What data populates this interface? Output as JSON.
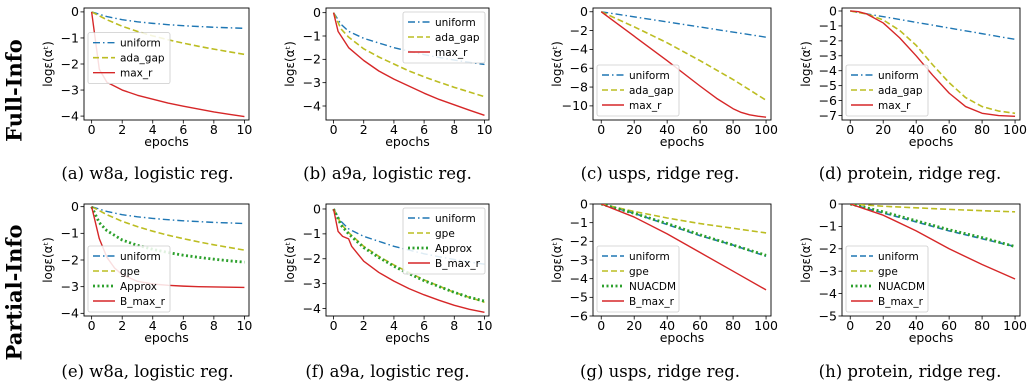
{
  "row_labels": [
    "Full-Info",
    "Partial-Info"
  ],
  "colors": {
    "uniform": "#1f77b4",
    "gap": "#bcbd22",
    "approx": "#2ca02c",
    "maxr": "#d62728"
  },
  "chart_data": [
    {
      "type": "line",
      "caption": "(a) w8a, logistic reg.",
      "xlabel": "epochs",
      "ylabel": "logε(αᵗ)",
      "xlim": [
        -0.5,
        10.3
      ],
      "ylim": [
        -4.15,
        0.15
      ],
      "xticks": [
        0,
        2,
        4,
        6,
        8,
        10
      ],
      "yticks": [
        0,
        -1,
        -2,
        -3,
        -4
      ],
      "legend_position": "center-left",
      "series": [
        {
          "name": "uniform",
          "style": "dashdot",
          "color_key": "uniform",
          "x": [
            0,
            1,
            2,
            3,
            4,
            5,
            6,
            7,
            8,
            9,
            10
          ],
          "y": [
            0,
            -0.18,
            -0.3,
            -0.38,
            -0.44,
            -0.49,
            -0.53,
            -0.56,
            -0.59,
            -0.61,
            -0.63
          ]
        },
        {
          "name": "ada_gap",
          "style": "dashed",
          "color_key": "gap",
          "x": [
            0,
            1,
            2,
            3,
            4,
            5,
            6,
            7,
            8,
            9,
            10
          ],
          "y": [
            0,
            -0.3,
            -0.55,
            -0.75,
            -0.92,
            -1.07,
            -1.2,
            -1.32,
            -1.43,
            -1.53,
            -1.63
          ]
        },
        {
          "name": "max_r",
          "style": "solid",
          "color_key": "maxr",
          "x": [
            0,
            0.5,
            1,
            2,
            3,
            4,
            5,
            6,
            7,
            8,
            9,
            10
          ],
          "y": [
            0,
            -2.2,
            -2.7,
            -3.0,
            -3.2,
            -3.35,
            -3.5,
            -3.62,
            -3.73,
            -3.84,
            -3.93,
            -4.02
          ]
        }
      ]
    },
    {
      "type": "line",
      "caption": "(b) a9a, logistic reg.",
      "xlabel": "epochs",
      "ylabel": "logε(αᵗ)",
      "xlim": [
        -0.5,
        10.3
      ],
      "ylim": [
        -4.6,
        0.2
      ],
      "xticks": [
        0,
        2,
        4,
        6,
        8,
        10
      ],
      "yticks": [
        0,
        -1,
        -2,
        -3,
        -4
      ],
      "legend_position": "top-right",
      "series": [
        {
          "name": "uniform",
          "style": "dashdot",
          "color_key": "uniform",
          "x": [
            0,
            0.5,
            1,
            2,
            3,
            4,
            5,
            6,
            7,
            8,
            9,
            10
          ],
          "y": [
            0,
            -0.5,
            -0.8,
            -1.1,
            -1.3,
            -1.5,
            -1.65,
            -1.8,
            -1.92,
            -2.03,
            -2.13,
            -2.22
          ]
        },
        {
          "name": "ada_gap",
          "style": "dashed",
          "color_key": "gap",
          "x": [
            0,
            0.5,
            1,
            2,
            3,
            4,
            5,
            6,
            7,
            8,
            9,
            10
          ],
          "y": [
            0,
            -0.7,
            -1.05,
            -1.55,
            -1.9,
            -2.2,
            -2.5,
            -2.75,
            -2.98,
            -3.2,
            -3.4,
            -3.6
          ]
        },
        {
          "name": "max_r",
          "style": "solid",
          "color_key": "maxr",
          "x": [
            0,
            0.3,
            0.7,
            1,
            2,
            3,
            4,
            5,
            6,
            7,
            8,
            9,
            10
          ],
          "y": [
            0,
            -0.8,
            -1.2,
            -1.5,
            -2.05,
            -2.5,
            -2.85,
            -3.15,
            -3.45,
            -3.72,
            -3.95,
            -4.18,
            -4.4
          ]
        }
      ]
    },
    {
      "type": "line",
      "caption": "(c) usps, ridge reg.",
      "xlabel": "epochs",
      "ylabel": "logε(αᵗ)",
      "xlim": [
        -5,
        103
      ],
      "ylim": [
        -11.5,
        0.4
      ],
      "xticks": [
        0,
        20,
        40,
        60,
        80,
        100
      ],
      "yticks": [
        0,
        -2,
        -4,
        -6,
        -8,
        -10
      ],
      "legend_position": "bottom-left",
      "series": [
        {
          "name": "uniform",
          "style": "dashdot",
          "color_key": "uniform",
          "x": [
            0,
            100
          ],
          "y": [
            0,
            -2.7
          ]
        },
        {
          "name": "ada_gap",
          "style": "dashed",
          "color_key": "gap",
          "x": [
            0,
            20,
            40,
            60,
            80,
            100
          ],
          "y": [
            0,
            -1.6,
            -3.3,
            -5.2,
            -7.2,
            -9.4
          ]
        },
        {
          "name": "max_r",
          "style": "solid",
          "color_key": "maxr",
          "x": [
            0,
            20,
            40,
            60,
            70,
            80,
            85,
            90,
            95,
            100
          ],
          "y": [
            0,
            -2.6,
            -5.2,
            -7.9,
            -9.2,
            -10.3,
            -10.7,
            -10.95,
            -11.1,
            -11.2
          ]
        }
      ]
    },
    {
      "type": "line",
      "caption": "(d) protein, ridge reg.",
      "xlabel": "epochs",
      "ylabel": "logε(αᵗ)",
      "xlim": [
        -5,
        103
      ],
      "ylim": [
        -7.3,
        0.2
      ],
      "xticks": [
        0,
        20,
        40,
        60,
        80,
        100
      ],
      "yticks": [
        0,
        -1,
        -2,
        -3,
        -4,
        -5,
        -6,
        -7
      ],
      "legend_position": "bottom-left",
      "series": [
        {
          "name": "uniform",
          "style": "dashdot",
          "color_key": "uniform",
          "x": [
            0,
            100
          ],
          "y": [
            0,
            -1.9
          ]
        },
        {
          "name": "ada_gap",
          "style": "dashed",
          "color_key": "gap",
          "x": [
            0,
            10,
            20,
            30,
            40,
            50,
            60,
            70,
            80,
            90,
            100
          ],
          "y": [
            0,
            -0.2,
            -0.6,
            -1.3,
            -2.3,
            -3.6,
            -4.8,
            -5.8,
            -6.4,
            -6.7,
            -6.85
          ]
        },
        {
          "name": "max_r",
          "style": "solid",
          "color_key": "maxr",
          "x": [
            0,
            5,
            10,
            20,
            30,
            40,
            50,
            60,
            70,
            80,
            90,
            100
          ],
          "y": [
            0,
            -0.05,
            -0.2,
            -0.8,
            -1.8,
            -3.0,
            -4.3,
            -5.5,
            -6.4,
            -6.85,
            -7.0,
            -7.05
          ]
        }
      ]
    },
    {
      "type": "line",
      "caption": "(e) w8a, logistic reg.",
      "xlabel": "epochs",
      "ylabel": "logε(αᵗ)",
      "xlim": [
        -0.5,
        10.3
      ],
      "ylim": [
        -4.1,
        0.1
      ],
      "xticks": [
        0,
        2,
        4,
        6,
        8,
        10
      ],
      "yticks": [
        0,
        -1,
        -2,
        -3,
        -4
      ],
      "legend_position": "bottom-left",
      "series": [
        {
          "name": "uniform",
          "style": "dashdot",
          "color_key": "uniform",
          "x": [
            0,
            1,
            2,
            3,
            4,
            5,
            6,
            7,
            8,
            9,
            10
          ],
          "y": [
            0,
            -0.18,
            -0.3,
            -0.38,
            -0.44,
            -0.49,
            -0.53,
            -0.56,
            -0.59,
            -0.61,
            -0.63
          ]
        },
        {
          "name": "gpe",
          "style": "dashed",
          "color_key": "gap",
          "x": [
            0,
            1,
            2,
            3,
            4,
            5,
            6,
            7,
            8,
            9,
            10
          ],
          "y": [
            0,
            -0.3,
            -0.55,
            -0.75,
            -0.92,
            -1.07,
            -1.2,
            -1.32,
            -1.43,
            -1.53,
            -1.63
          ]
        },
        {
          "name": "Approx",
          "style": "dotted",
          "color_key": "approx",
          "x": [
            0,
            0.5,
            1,
            2,
            3,
            4,
            5,
            6,
            7,
            8,
            9,
            10
          ],
          "y": [
            0,
            -0.6,
            -0.9,
            -1.25,
            -1.45,
            -1.6,
            -1.72,
            -1.82,
            -1.9,
            -1.97,
            -2.03,
            -2.08
          ]
        },
        {
          "name": "B_max_r",
          "style": "solid",
          "color_key": "maxr",
          "x": [
            0,
            0.5,
            1,
            1.5,
            2,
            3,
            4,
            5,
            6,
            7,
            8,
            9,
            10
          ],
          "y": [
            0,
            -1.2,
            -1.9,
            -2.3,
            -2.55,
            -2.8,
            -2.9,
            -2.95,
            -2.98,
            -3.0,
            -3.01,
            -3.02,
            -3.03
          ]
        }
      ]
    },
    {
      "type": "line",
      "caption": "(f) a9a, logistic reg.",
      "xlabel": "epochs",
      "ylabel": "logε(αᵗ)",
      "xlim": [
        -0.5,
        10.3
      ],
      "ylim": [
        -4.3,
        0.2
      ],
      "xticks": [
        0,
        2,
        4,
        6,
        8,
        10
      ],
      "yticks": [
        0,
        -1,
        -2,
        -3,
        -4
      ],
      "legend_position": "top-right",
      "series": [
        {
          "name": "uniform",
          "style": "dashdot",
          "color_key": "uniform",
          "x": [
            0,
            0.5,
            1,
            2,
            3,
            4,
            5,
            6,
            7,
            8,
            9,
            10
          ],
          "y": [
            0,
            -0.5,
            -0.8,
            -1.1,
            -1.3,
            -1.5,
            -1.65,
            -1.8,
            -1.92,
            -2.03,
            -2.13,
            -2.22
          ]
        },
        {
          "name": "gpe",
          "style": "dashed",
          "color_key": "gap",
          "x": [
            0,
            0.5,
            1,
            2,
            3,
            4,
            5,
            6,
            7,
            8,
            9,
            10
          ],
          "y": [
            0,
            -0.6,
            -0.95,
            -1.5,
            -1.9,
            -2.25,
            -2.55,
            -2.85,
            -3.1,
            -3.35,
            -3.55,
            -3.75
          ]
        },
        {
          "name": "Approx",
          "style": "dotted",
          "color_key": "approx",
          "x": [
            0,
            0.5,
            1,
            2,
            3,
            4,
            5,
            6,
            7,
            8,
            9,
            10
          ],
          "y": [
            0,
            -0.65,
            -1.0,
            -1.55,
            -1.95,
            -2.3,
            -2.6,
            -2.88,
            -3.12,
            -3.35,
            -3.55,
            -3.7
          ]
        },
        {
          "name": "B_max_r",
          "style": "solid",
          "color_key": "maxr",
          "x": [
            0,
            0.3,
            0.6,
            1,
            1.2,
            2,
            3,
            4,
            5,
            6,
            7,
            8,
            9,
            10
          ],
          "y": [
            0,
            -0.9,
            -1.1,
            -1.2,
            -1.5,
            -2.1,
            -2.55,
            -2.9,
            -3.2,
            -3.45,
            -3.67,
            -3.87,
            -4.03,
            -4.15
          ]
        }
      ]
    },
    {
      "type": "line",
      "caption": "(g) usps, ridge reg.",
      "xlabel": "epochs",
      "ylabel": "logε(αᵗ)",
      "xlim": [
        -5,
        103
      ],
      "ylim": [
        -6,
        0
      ],
      "xticks": [
        0,
        20,
        40,
        60,
        80,
        100
      ],
      "yticks": [
        0,
        -1,
        -2,
        -3,
        -4,
        -5,
        -6
      ],
      "legend_position": "bottom-left",
      "series": [
        {
          "name": "uniform",
          "style": "dashed",
          "color_key": "uniform",
          "x": [
            0,
            20,
            40,
            60,
            80,
            100
          ],
          "y": [
            0,
            -0.5,
            -1.1,
            -1.7,
            -2.2,
            -2.8
          ]
        },
        {
          "name": "gpe",
          "style": "dashed",
          "color_key": "gap",
          "x": [
            0,
            20,
            40,
            60,
            80,
            100
          ],
          "y": [
            0,
            -0.4,
            -0.75,
            -1.05,
            -1.3,
            -1.55
          ]
        },
        {
          "name": "NUACDM",
          "style": "dotted",
          "color_key": "approx",
          "x": [
            0,
            20,
            40,
            60,
            80,
            100
          ],
          "y": [
            0,
            -0.5,
            -1.05,
            -1.65,
            -2.2,
            -2.75
          ]
        },
        {
          "name": "B_max_r",
          "style": "solid",
          "color_key": "maxr",
          "x": [
            0,
            20,
            40,
            60,
            80,
            100
          ],
          "y": [
            0,
            -0.7,
            -1.6,
            -2.6,
            -3.6,
            -4.6
          ]
        }
      ]
    },
    {
      "type": "line",
      "caption": "(h) protein, ridge reg.",
      "xlabel": "epochs",
      "ylabel": "logε(αᵗ)",
      "xlim": [
        -5,
        103
      ],
      "ylim": [
        -5,
        0
      ],
      "xticks": [
        0,
        20,
        40,
        60,
        80,
        100
      ],
      "yticks": [
        0,
        -1,
        -2,
        -3,
        -4,
        -5
      ],
      "legend_position": "bottom-left",
      "series": [
        {
          "name": "uniform",
          "style": "dashed",
          "color_key": "uniform",
          "x": [
            0,
            20,
            40,
            60,
            80,
            100
          ],
          "y": [
            0,
            -0.4,
            -0.8,
            -1.2,
            -1.55,
            -1.9
          ]
        },
        {
          "name": "gpe",
          "style": "dashed",
          "color_key": "gap",
          "x": [
            0,
            20,
            40,
            60,
            80,
            100
          ],
          "y": [
            0,
            -0.1,
            -0.17,
            -0.24,
            -0.3,
            -0.35
          ]
        },
        {
          "name": "NUACDM",
          "style": "dotted",
          "color_key": "approx",
          "x": [
            0,
            20,
            40,
            60,
            80,
            100
          ],
          "y": [
            0,
            -0.35,
            -0.75,
            -1.15,
            -1.5,
            -1.9
          ]
        },
        {
          "name": "B_max_r",
          "style": "solid",
          "color_key": "maxr",
          "x": [
            0,
            20,
            40,
            60,
            80,
            100
          ],
          "y": [
            0,
            -0.5,
            -1.2,
            -2.0,
            -2.7,
            -3.35
          ]
        }
      ]
    }
  ]
}
